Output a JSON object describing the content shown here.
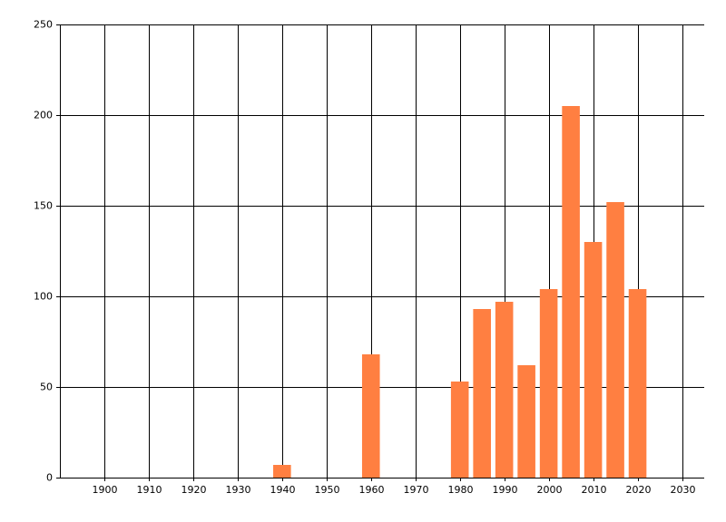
{
  "chart_data": {
    "type": "bar",
    "x": [
      1940,
      1960,
      1980,
      1985,
      1990,
      1995,
      2000,
      2005,
      2010,
      2015,
      2020
    ],
    "values": [
      7,
      68,
      53,
      93,
      97,
      62,
      104,
      205,
      130,
      152,
      104
    ],
    "color": "#ff7f41",
    "bar_width": 4,
    "xlim": [
      1890,
      2035
    ],
    "xticks": [
      1900,
      1910,
      1920,
      1930,
      1940,
      1950,
      1960,
      1970,
      1980,
      1990,
      2000,
      2010,
      2020,
      2030
    ],
    "ylim": [
      0,
      250
    ],
    "yticks": [
      0,
      50,
      100,
      150,
      200,
      250
    ],
    "grid": true
  }
}
